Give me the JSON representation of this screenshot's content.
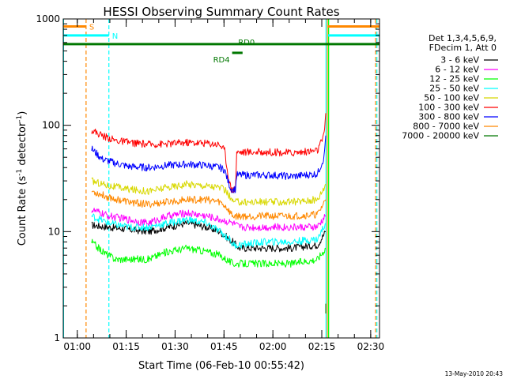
{
  "chart_data": {
    "type": "line",
    "title": "HESSI Observing Summary Count Rates",
    "xlabel": "Start Time (06-Feb-10 00:55:42)",
    "ylabel_main": "Count Rate (s",
    "ylabel_sup1": "-1",
    "ylabel_mid": " detector",
    "ylabel_sup2": "-1",
    "ylabel_end": ")",
    "x_unit": "minutes since 00:55:42",
    "x_range": [
      0,
      97
    ],
    "y_range": [
      1,
      1000
    ],
    "y_scale": "log",
    "x_ticks": [
      {
        "label": "01:00",
        "x": 4.3
      },
      {
        "label": "01:15",
        "x": 19.3
      },
      {
        "label": "01:30",
        "x": 34.3
      },
      {
        "label": "01:45",
        "x": 49.3
      },
      {
        "label": "02:00",
        "x": 64.3
      },
      {
        "label": "02:15",
        "x": 79.3
      },
      {
        "label": "02:30",
        "x": 94.3
      }
    ],
    "y_ticks": [
      {
        "label": "1",
        "y": 1
      },
      {
        "label": "10",
        "y": 10
      },
      {
        "label": "100",
        "y": 100
      },
      {
        "label": "1000",
        "y": 1000
      }
    ],
    "legend_header": [
      "Det 1,3,4,5,6,9,",
      "FDecim 1, Att 0"
    ],
    "series": [
      {
        "name": "3 - 6 keV",
        "color": "#000000",
        "points": [
          [
            8.7,
            11.5
          ],
          [
            14,
            11
          ],
          [
            20,
            10.5
          ],
          [
            26,
            10
          ],
          [
            32,
            11
          ],
          [
            38,
            12
          ],
          [
            44,
            11
          ],
          [
            48,
            10
          ],
          [
            52,
            8
          ],
          [
            54,
            7
          ],
          [
            62,
            7
          ],
          [
            70,
            7
          ],
          [
            78,
            7.5
          ],
          [
            80.5,
            10
          ]
        ]
      },
      {
        "name": "6 - 12 keV",
        "color": "#ff00ff",
        "points": [
          [
            8.7,
            16
          ],
          [
            14,
            14
          ],
          [
            20,
            13
          ],
          [
            26,
            12
          ],
          [
            32,
            14
          ],
          [
            38,
            15
          ],
          [
            44,
            14
          ],
          [
            48,
            13
          ],
          [
            52,
            12
          ],
          [
            54,
            11
          ],
          [
            62,
            11
          ],
          [
            70,
            11
          ],
          [
            78,
            11
          ],
          [
            80.5,
            14
          ]
        ]
      },
      {
        "name": "12 - 25 keV",
        "color": "#00ff00",
        "points": [
          [
            8.7,
            8
          ],
          [
            12,
            6.5
          ],
          [
            16,
            5.5
          ],
          [
            20,
            5.5
          ],
          [
            26,
            5.5
          ],
          [
            32,
            6.5
          ],
          [
            38,
            7
          ],
          [
            44,
            6.5
          ],
          [
            48,
            6
          ],
          [
            52,
            5
          ],
          [
            54,
            5
          ],
          [
            62,
            5
          ],
          [
            70,
            5
          ],
          [
            78,
            5.5
          ],
          [
            80.5,
            7
          ]
        ]
      },
      {
        "name": "25 - 50 keV",
        "color": "#00ffff",
        "points": [
          [
            8.7,
            14
          ],
          [
            14,
            12
          ],
          [
            20,
            11
          ],
          [
            26,
            11
          ],
          [
            32,
            12
          ],
          [
            38,
            13
          ],
          [
            44,
            12
          ],
          [
            48,
            10
          ],
          [
            51,
            8.5
          ],
          [
            52,
            7.5
          ],
          [
            54,
            7.5
          ],
          [
            62,
            8
          ],
          [
            70,
            8
          ],
          [
            78,
            8.5
          ],
          [
            80.5,
            12
          ]
        ]
      },
      {
        "name": "50 - 100 keV",
        "color": "#d8d800",
        "points": [
          [
            8.7,
            30
          ],
          [
            14,
            27
          ],
          [
            20,
            25
          ],
          [
            26,
            24
          ],
          [
            32,
            26
          ],
          [
            38,
            28
          ],
          [
            44,
            27
          ],
          [
            48,
            26
          ],
          [
            50,
            24
          ],
          [
            52,
            19
          ],
          [
            54,
            19
          ],
          [
            62,
            19
          ],
          [
            70,
            19
          ],
          [
            78,
            20
          ],
          [
            80.5,
            28
          ]
        ]
      },
      {
        "name": "100 - 300 keV",
        "color": "#ff0000",
        "points": [
          [
            8.7,
            90
          ],
          [
            12,
            80
          ],
          [
            16,
            72
          ],
          [
            20,
            69
          ],
          [
            26,
            66
          ],
          [
            32,
            67
          ],
          [
            38,
            69
          ],
          [
            44,
            68
          ],
          [
            48,
            66
          ],
          [
            49.5,
            58
          ],
          [
            50.5,
            35
          ],
          [
            51.5,
            25
          ],
          [
            52.8,
            25
          ],
          [
            53.2,
            56
          ],
          [
            58,
            56
          ],
          [
            64,
            56
          ],
          [
            70,
            55
          ],
          [
            78,
            58
          ],
          [
            80,
            80
          ],
          [
            80.5,
            130
          ]
        ]
      },
      {
        "name": "300 - 800 keV",
        "color": "#0000ff",
        "points": [
          [
            8.7,
            60
          ],
          [
            12,
            48
          ],
          [
            16,
            44
          ],
          [
            20,
            41
          ],
          [
            26,
            40
          ],
          [
            32,
            42
          ],
          [
            38,
            43
          ],
          [
            44,
            42
          ],
          [
            48,
            40
          ],
          [
            49.5,
            38
          ],
          [
            50.5,
            30
          ],
          [
            51.5,
            25
          ],
          [
            52.8,
            25
          ],
          [
            53.2,
            34
          ],
          [
            58,
            34
          ],
          [
            64,
            34
          ],
          [
            70,
            33
          ],
          [
            78,
            35
          ],
          [
            80,
            50
          ],
          [
            80.5,
            80
          ]
        ]
      },
      {
        "name": "800 - 7000 keV",
        "color": "#ff8800",
        "points": [
          [
            8.7,
            24
          ],
          [
            14,
            21
          ],
          [
            20,
            19
          ],
          [
            26,
            18
          ],
          [
            32,
            19
          ],
          [
            38,
            20
          ],
          [
            44,
            20
          ],
          [
            48,
            19
          ],
          [
            50,
            17
          ],
          [
            52,
            14
          ],
          [
            54,
            14
          ],
          [
            62,
            14
          ],
          [
            70,
            14
          ],
          [
            78,
            14.5
          ],
          [
            80.5,
            20
          ]
        ]
      },
      {
        "name": "7000 - 20000 keV",
        "color": "#007700",
        "points": [
          [
            80.5,
            1.7
          ],
          [
            80.5,
            2.1
          ]
        ]
      }
    ],
    "flags": [
      {
        "label": "S",
        "color": "#ff8800",
        "y": 850,
        "segments": [
          [
            0,
            7
          ],
          [
            81.2,
            97
          ]
        ]
      },
      {
        "label": "N",
        "color": "#00ffff",
        "y": 700,
        "segments": [
          [
            0,
            14
          ],
          [
            81.2,
            97
          ]
        ]
      },
      {
        "label": "RD0",
        "color": "#007700",
        "y": 580,
        "segments": [
          [
            0,
            97
          ]
        ]
      },
      {
        "label": "RD4",
        "color": "#007700",
        "y": 480,
        "segments": [
          [
            51.8,
            55
          ]
        ]
      }
    ],
    "vlines": [
      {
        "x": 0.1,
        "color": "#00ffff",
        "style": "solid"
      },
      {
        "x": 7,
        "color": "#ff8800",
        "style": "dashed"
      },
      {
        "x": 14,
        "color": "#00ffff",
        "style": "dashed"
      },
      {
        "x": 80.6,
        "color": "#00ffff",
        "style": "solid"
      },
      {
        "x": 81.0,
        "color": "#ff8800",
        "style": "solid"
      },
      {
        "x": 81.4,
        "color": "#00ff00",
        "style": "solid"
      },
      {
        "x": 95.8,
        "color": "#ff8800",
        "style": "dashed"
      },
      {
        "x": 96.2,
        "color": "#00ffff",
        "style": "dashed"
      }
    ],
    "timestamp": "13-May-2010 20:43"
  }
}
